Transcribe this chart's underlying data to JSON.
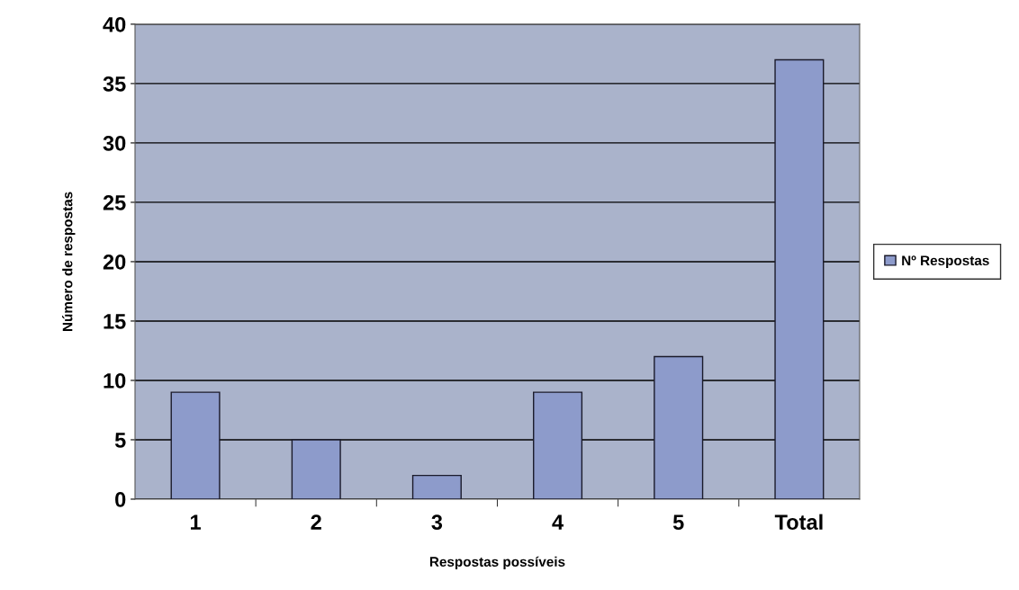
{
  "chart_data": {
    "type": "bar",
    "xlabel": "Respostas possíveis",
    "ylabel": "Número de respostas",
    "categories": [
      "1",
      "2",
      "3",
      "4",
      "5",
      "Total"
    ],
    "series": [
      {
        "name": "Nº Respostas",
        "color": "#8d9bcb",
        "values": [
          9,
          5,
          2,
          9,
          12,
          37
        ]
      }
    ],
    "ylim": [
      0,
      40
    ],
    "yticks": [
      0,
      5,
      10,
      15,
      20,
      25,
      30,
      35,
      40
    ],
    "grid": "y",
    "legend": "right"
  }
}
